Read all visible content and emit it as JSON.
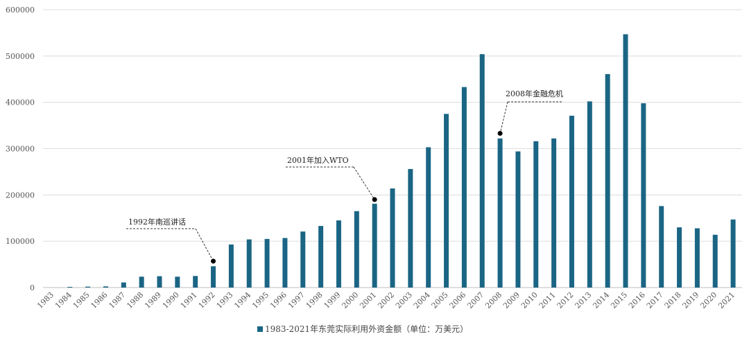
{
  "chart_data": {
    "type": "bar",
    "categories": [
      "1983",
      "1984",
      "1985",
      "1986",
      "1987",
      "1988",
      "1989",
      "1990",
      "1991",
      "1992",
      "1993",
      "1994",
      "1995",
      "1996",
      "1997",
      "1998",
      "1999",
      "2000",
      "2001",
      "2002",
      "2003",
      "2004",
      "2005",
      "2006",
      "2007",
      "2008",
      "2009",
      "2010",
      "2011",
      "2012",
      "2013",
      "2014",
      "2015",
      "2016",
      "2017",
      "2018",
      "2019",
      "2020",
      "2021"
    ],
    "series": [
      {
        "name": "1983-2021年东莞实际利用外资金额（单位：万美元）",
        "color": "#1b6584",
        "values": [
          0,
          1500,
          2000,
          2500,
          11000,
          23500,
          24500,
          23500,
          25000,
          46000,
          93000,
          104000,
          105000,
          107000,
          121000,
          133000,
          145000,
          165000,
          181000,
          214000,
          256000,
          303000,
          375000,
          433000,
          504000,
          322000,
          294000,
          316000,
          322000,
          371000,
          402000,
          461000,
          547000,
          398000,
          176000,
          130000,
          128000,
          114000,
          147000
        ]
      }
    ],
    "ylim": [
      0,
      600000
    ],
    "yticks": [
      "0",
      "100000",
      "200000",
      "300000",
      "400000",
      "500000",
      "600000"
    ],
    "grid": true,
    "legend_position": "bottom",
    "annotations": [
      {
        "text": "1992年南巡讲话",
        "category": "1992",
        "value": 57000
      },
      {
        "text": "2001年加入WTO",
        "category": "2001",
        "value": 190000
      },
      {
        "text": "2008年金融危机",
        "category": "2008",
        "value": 333000
      }
    ]
  }
}
